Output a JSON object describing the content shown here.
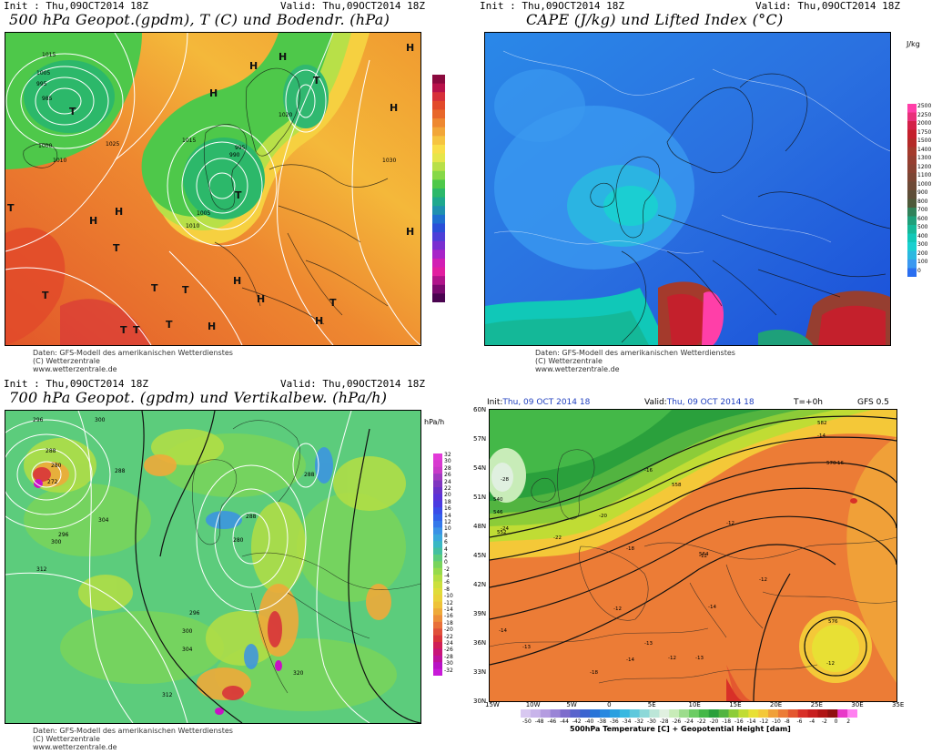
{
  "panel1": {
    "init": "Init : Thu,09OCT2014 18Z",
    "valid": "Valid: Thu,09OCT2014 18Z",
    "title": "500 hPa Geopot.(gpdm), T (C) und Bodendr. (hPa)",
    "credit_line1": "Daten: GFS-Modell des amerikanischen Wetterdienstes",
    "credit_line2": "(C) Wetterzentrale",
    "credit_line3": "www.wetterzentrale.de",
    "isobars": [
      "1015",
      "1005",
      "995",
      "985",
      "1000",
      "1010",
      "1025",
      "1030",
      "1020",
      "1015",
      "1010",
      "995",
      "990",
      "1005"
    ],
    "high_symbol": "H",
    "low_symbol": "T"
  },
  "panel2": {
    "init": "Init : Thu,09OCT2014 18Z",
    "valid": "Valid: Thu,09OCT2014 18Z",
    "title": "CAPE (J/kg) und Lifted Index (°C)",
    "unit": "J/kg",
    "scale": [
      "2500",
      "2250",
      "2000",
      "1750",
      "1500",
      "1400",
      "1300",
      "1200",
      "1100",
      "1000",
      "900",
      "800",
      "700",
      "600",
      "500",
      "400",
      "300",
      "200",
      "100",
      "0"
    ],
    "credit_line1": "Daten: GFS-Modell des amerikanischen Wetterdienstes",
    "credit_line2": "(C) Wetterzentrale",
    "credit_line3": "www.wetterzentrale.de"
  },
  "panel3": {
    "init": "Init : Thu,09OCT2014 18Z",
    "valid": "Valid: Thu,09OCT2014 18Z",
    "title": "700 hPa Geopot. (gpdm) und Vertikalbew. (hPa/h)",
    "unit": "hPa/h",
    "scale": [
      "32",
      "30",
      "28",
      "26",
      "24",
      "22",
      "20",
      "18",
      "16",
      "14",
      "12",
      "10",
      "8",
      "6",
      "4",
      "2",
      "0",
      "-2",
      "-4",
      "-6",
      "-8",
      "-10",
      "-12",
      "-14",
      "-16",
      "-18",
      "-20",
      "-22",
      "-24",
      "-26",
      "-28",
      "-30",
      "-32"
    ],
    "contours": [
      "296",
      "300",
      "288",
      "280",
      "272",
      "288",
      "300",
      "296",
      "304",
      "312",
      "288",
      "280",
      "296",
      "300",
      "304",
      "288",
      "312",
      "320"
    ],
    "credit_line1": "Daten: GFS-Modell des amerikanischen Wetterdienstes",
    "credit_line2": "(C) Wetterzentrale",
    "credit_line3": "www.wetterzentrale.de"
  },
  "panel4": {
    "init_label": "Init:",
    "init_value": "Thu, 09 OCT 2014   18",
    "valid_label": "Valid:",
    "valid_value": "Thu, 09 OCT 2014   18",
    "lead": "T=+0h",
    "model": "GFS 0.5",
    "lat_labels": [
      "60N",
      "57N",
      "54N",
      "51N",
      "48N",
      "45N",
      "42N",
      "39N",
      "36N",
      "33N",
      "30N"
    ],
    "lon_labels": [
      "15W",
      "10W",
      "5W",
      "0",
      "5E",
      "10E",
      "15E",
      "20E",
      "25E",
      "30E",
      "35E"
    ],
    "scale": [
      "-50",
      "-48",
      "-46",
      "-44",
      "-42",
      "-40",
      "-38",
      "-36",
      "-34",
      "-32",
      "-30",
      "-28",
      "-26",
      "-24",
      "-22",
      "-20",
      "-18",
      "-16",
      "-14",
      "-12",
      "-10",
      "-8",
      "-6",
      "-4",
      "-2",
      "0",
      "2"
    ],
    "caption": "500hPa Temperature [C] + Geopotential Height [dam]",
    "temp_labels": [
      "-28",
      "-24",
      "-22",
      "-20",
      "-18",
      "-16",
      "-14",
      "-12",
      "-14",
      "-12",
      "-18",
      "-12",
      "-13",
      "-14",
      "-13",
      "-13",
      "-12",
      "-12",
      "-12",
      "-14",
      "-16"
    ],
    "height_labels": [
      "540",
      "546",
      "552",
      "558",
      "564",
      "570",
      "576",
      "582"
    ]
  },
  "colors": {
    "p1_scale": [
      "#8b0a3e",
      "#b8124a",
      "#d7303a",
      "#e24a2a",
      "#e8672a",
      "#ee8830",
      "#f2a638",
      "#f6c440",
      "#f9de48",
      "#e6e64a",
      "#b8e048",
      "#86d848",
      "#4ec84a",
      "#2cb86a",
      "#1ea88e",
      "#1e90b0",
      "#1e6fd0",
      "#2a4fd8",
      "#4d3fd8",
      "#7a2fd0",
      "#a824c8",
      "#d21eb4",
      "#e21ea0",
      "#b0148a",
      "#7a0a6e",
      "#4a0450"
    ],
    "p2_scale": [
      "#ff3fa8",
      "#e8307a",
      "#d32048",
      "#c4202c",
      "#b42a28",
      "#a43a2c",
      "#963e30",
      "#8a4232",
      "#7c4634",
      "#6e4a36",
      "#5e4e38",
      "#4e5a3a",
      "#30825a",
      "#1ea07a",
      "#14b898",
      "#10c8b8",
      "#1ad0d0",
      "#2ab8e0",
      "#3a98f0",
      "#2a6ef0"
    ],
    "p3_scale": [
      "#e23ad8",
      "#d83ad0",
      "#c83ac8",
      "#a03ac0",
      "#8036c0",
      "#6a32c8",
      "#5a32d8",
      "#4a3ae0",
      "#3a4ce8",
      "#3260ea",
      "#3478ea",
      "#3a92e6",
      "#3aa8dc",
      "#3ab8c4",
      "#44c0a0",
      "#5ccc7c",
      "#78d45c",
      "#96da4c",
      "#b4de44",
      "#cce03e",
      "#e0dc3a",
      "#ead23a",
      "#eec23a",
      "#eeaa3a",
      "#ec8e3a",
      "#e8703a",
      "#e0503a",
      "#d8343a",
      "#d01e56",
      "#c81478",
      "#be129c",
      "#b812c4",
      "#c81ad8"
    ],
    "p4_scale": [
      "#d8c8f0",
      "#c8b4ea",
      "#b49ce0",
      "#9a84d6",
      "#7e6ccc",
      "#5a64cc",
      "#3c64d0",
      "#2874d8",
      "#2888e0",
      "#2aa0e0",
      "#38b8e0",
      "#5ec8dc",
      "#8cd8d8",
      "#bce6d8",
      "#e0f0e0",
      "#c8ecb8",
      "#9cdc8c",
      "#6ccc64",
      "#44b848",
      "#2aa03c",
      "#52b440",
      "#8ccc38",
      "#c0dc34",
      "#e8e034",
      "#f4c838",
      "#f0a038",
      "#ec7c36",
      "#e45830",
      "#d83028",
      "#c81e1e",
      "#b01414",
      "#901010",
      "#e838c8",
      "#ff80f0"
    ]
  }
}
